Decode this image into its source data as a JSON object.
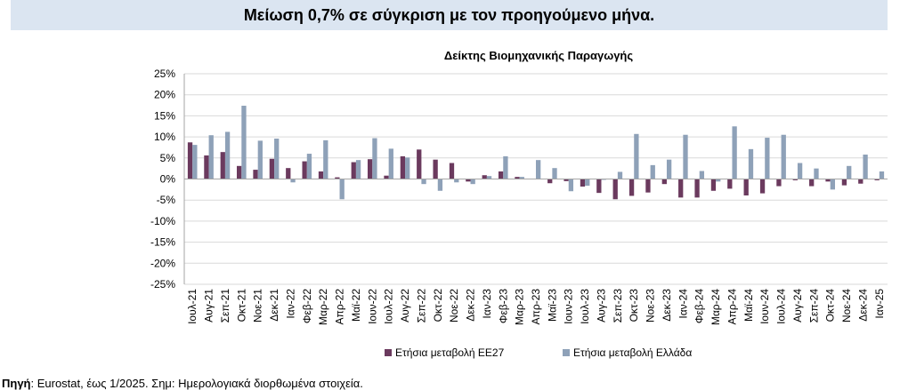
{
  "header": {
    "banner": "Μείωση 0,7% σε σύγκριση με τον προηγούμενο μήνα."
  },
  "footer": {
    "source_label": "Πηγή",
    "source_text": ": Eurostat, έως 1/2025. Σημ: Ημερολογιακά διορθωμένα στοιχεία."
  },
  "colors": {
    "eu27": "#6b3a5e",
    "greece": "#8ea1b8",
    "grid": "#d9d9d9",
    "axis": "#a6a6a6",
    "banner_bg": "#dbe5f1"
  },
  "chart_data": {
    "type": "bar",
    "title": "Δείκτης Βιομηχανικής Παραγωγής",
    "xlabel": "",
    "ylabel": "",
    "ylim": [
      -25,
      25
    ],
    "yticks": [
      25,
      20,
      15,
      10,
      5,
      0,
      -5,
      -10,
      -15,
      -20,
      -25
    ],
    "ytick_labels": [
      "25%",
      "20%",
      "15%",
      "10%",
      "5%",
      "0%",
      "-5%",
      "-10%",
      "-15%",
      "-20%",
      "-25%"
    ],
    "grid": true,
    "legend_position": "bottom",
    "categories": [
      "Ιουλ-21",
      "Αυγ-21",
      "Σεπ-21",
      "Οκτ-21",
      "Νοε-21",
      "Δεκ-21",
      "Ιαν-22",
      "Φεβ-22",
      "Μαρ-22",
      "Απρ-22",
      "Μαϊ-22",
      "Ιουν-22",
      "Ιουλ-22",
      "Αυγ-22",
      "Σεπ-22",
      "Οκτ-22",
      "Νοε-22",
      "Δεκ-22",
      "Ιαν-23",
      "Φεβ-23",
      "Μαρ-23",
      "Απρ-23",
      "Μαϊ-23",
      "Ιουν-23",
      "Ιουλ-23",
      "Αυγ-23",
      "Σεπ-23",
      "Οκτ-23",
      "Νοε-23",
      "Δεκ-23",
      "Ιαν-24",
      "Φεβ-24",
      "Μαρ-24",
      "Απρ-24",
      "Μαϊ-24",
      "Ιουν-24",
      "Ιουλ-24",
      "Αυγ-24",
      "Σεπ-24",
      "Οκτ-24",
      "Νοε-24",
      "Δεκ-24",
      "Ιαν-25"
    ],
    "series": [
      {
        "name": "Ετήσια μεταβολή ΕΕ27",
        "values": [
          8.7,
          5.6,
          6.4,
          3.1,
          2.2,
          4.8,
          2.6,
          4.2,
          1.8,
          0.4,
          4.0,
          4.7,
          0.8,
          5.4,
          7.0,
          4.6,
          3.8,
          -0.6,
          0.9,
          1.8,
          0.5,
          0.0,
          -1.0,
          -0.5,
          -1.8,
          -3.3,
          -4.8,
          -4.0,
          -3.2,
          -1.2,
          -4.4,
          -4.4,
          -2.8,
          -2.3,
          -3.9,
          -3.4,
          -1.7,
          -0.3,
          -1.7,
          -0.6,
          -1.5,
          -1.1,
          -0.3
        ]
      },
      {
        "name": "Ετήσια μεταβολή Ελλάδα",
        "values": [
          8.1,
          10.4,
          11.2,
          17.4,
          9.1,
          9.6,
          -0.8,
          6.0,
          9.2,
          -4.8,
          4.5,
          9.7,
          7.2,
          5.1,
          -1.2,
          -2.8,
          -0.8,
          -1.2,
          0.7,
          5.4,
          0.5,
          4.5,
          2.6,
          -2.9,
          -1.6,
          -0.2,
          1.7,
          10.7,
          3.3,
          4.6,
          10.5,
          1.9,
          -0.6,
          12.5,
          7.1,
          9.8,
          10.5,
          3.8,
          2.5,
          -2.5,
          3.1,
          5.8,
          1.8
        ]
      }
    ]
  }
}
